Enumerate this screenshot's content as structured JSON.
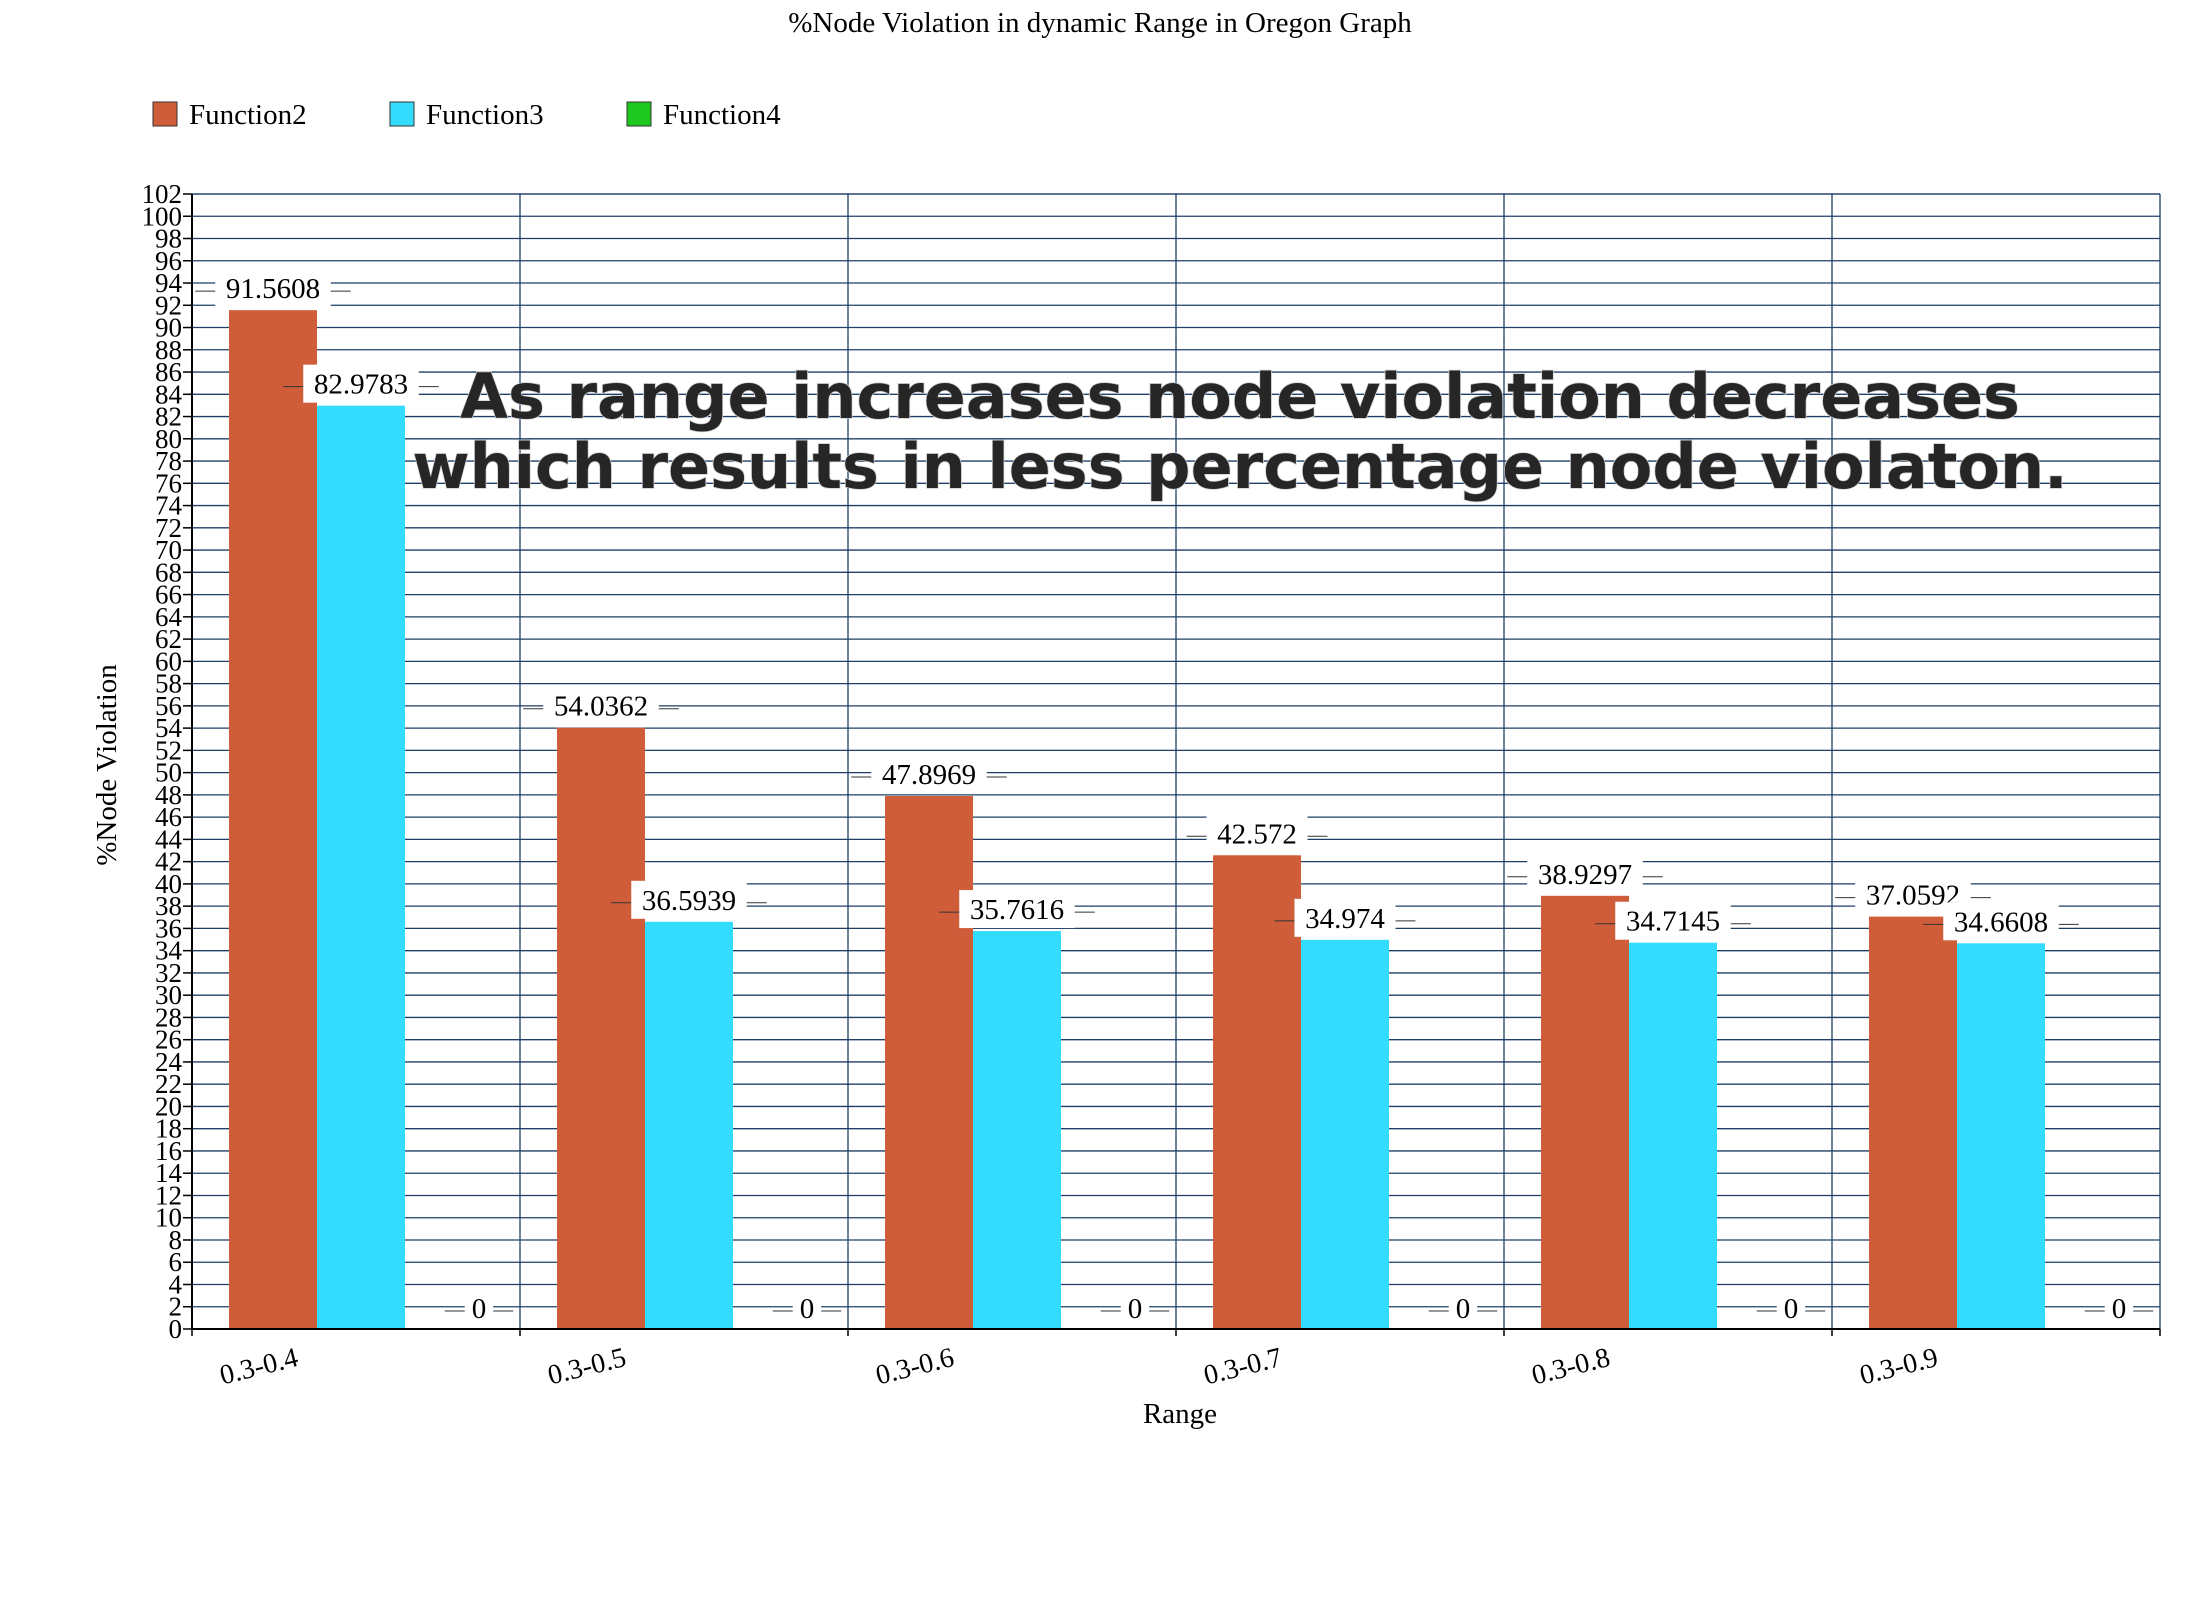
{
  "chart_data": {
    "type": "bar",
    "title": "%Node Violation in dynamic Range in Oregon Graph",
    "xlabel": "Range",
    "ylabel": "%Node Violation",
    "ylim": [
      0,
      102
    ],
    "ytick_step": 2,
    "grid": true,
    "legend_position": "top-left",
    "categories": [
      "0.3-0.4",
      "0.3-0.5",
      "0.3-0.6",
      "0.3-0.7",
      "0.3-0.8",
      "0.3-0.9"
    ],
    "series": [
      {
        "name": "Function2",
        "color": "#d05d3a",
        "values": [
          91.5608,
          54.0362,
          47.8969,
          42.572,
          38.9297,
          37.0592
        ],
        "labels": [
          "91.5608",
          "54.0362",
          "47.8969",
          "42.572",
          "38.9297",
          "37.0592"
        ]
      },
      {
        "name": "Function3",
        "color": "#33dcfc",
        "values": [
          82.9783,
          36.5939,
          35.7616,
          34.974,
          34.7145,
          34.6608
        ],
        "labels": [
          "82.9783",
          "36.5939",
          "35.7616",
          "34.974",
          "34.7145",
          "34.6608"
        ]
      },
      {
        "name": "Function4",
        "color": "#1ec81e",
        "values": [
          0,
          0,
          0,
          0,
          0,
          0
        ],
        "labels": [
          "0",
          "0",
          "0",
          "0",
          "0",
          "0"
        ]
      }
    ],
    "annotation": [
      "As range increases node violation decreases",
      "which results in less percentage node violaton."
    ],
    "colors": {
      "grid": "#1f3f66",
      "axis": "#000000"
    }
  }
}
